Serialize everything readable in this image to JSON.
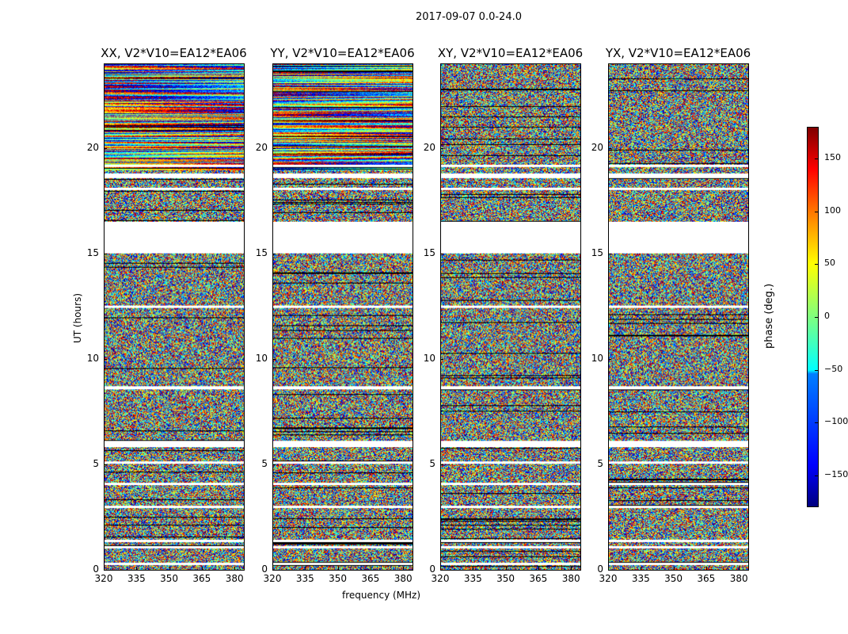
{
  "suptitle": "2017-09-07 0.0-24.0",
  "chart_data": {
    "type": "heatmap",
    "panels": [
      {
        "title": "XX, V2*V10=EA12*EA06"
      },
      {
        "title": "YY, V2*V10=EA12*EA06"
      },
      {
        "title": "XY, V2*V10=EA12*EA06"
      },
      {
        "title": "YX, V2*V10=EA12*EA06"
      }
    ],
    "xlabel": "frequency (MHz)",
    "ylabel": "UT (hours)",
    "xlim": [
      320,
      384.3
    ],
    "ylim": [
      0,
      24
    ],
    "xticks": [
      "320",
      "335",
      "350",
      "365",
      "380"
    ],
    "xtick_values": [
      320,
      335,
      350,
      365,
      380
    ],
    "yticks": [
      "0",
      "5",
      "10",
      "15",
      "20"
    ],
    "ytick_values": [
      0,
      5,
      10,
      15,
      20
    ],
    "flagged_ut_ranges": [
      [
        0.25,
        0.35
      ],
      [
        1.05,
        1.15
      ],
      [
        1.35,
        1.45
      ],
      [
        2.95,
        3.05
      ],
      [
        4.05,
        4.15
      ],
      [
        5.05,
        5.15
      ],
      [
        5.85,
        6.15
      ],
      [
        8.6,
        8.75
      ],
      [
        12.45,
        12.55
      ],
      [
        15.05,
        16.55
      ],
      [
        18.05,
        18.15
      ],
      [
        18.6,
        18.85
      ],
      [
        19.15,
        19.25
      ]
    ],
    "colorbar": {
      "label": "phase (deg.)",
      "range": [
        -180,
        180
      ],
      "ticks": [
        "150",
        "100",
        "50",
        "0",
        "−50",
        "−100",
        "−150"
      ],
      "tick_values": [
        150,
        100,
        50,
        0,
        -50,
        -100,
        -150
      ],
      "colormap": "jet"
    }
  }
}
